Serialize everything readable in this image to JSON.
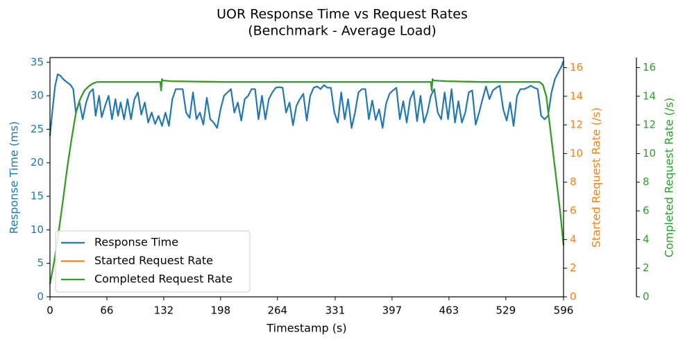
{
  "chart_data": {
    "type": "line",
    "title": "UOR Response Time vs Request Rates",
    "subtitle": "(Benchmark - Average Load)",
    "x_label": "Timestamp (s)",
    "y_label": "Response Time (ms)",
    "y2_label": "Started Request Rate (/s)",
    "y3_label": "Completed Request Rate (/s)",
    "xlim": [
      0,
      596
    ],
    "xticks": [
      0,
      66,
      132,
      198,
      264,
      331,
      397,
      463,
      529,
      596
    ],
    "ylim": [
      0,
      35.7
    ],
    "yticks": [
      0,
      5,
      10,
      15,
      20,
      25,
      30,
      35
    ],
    "y2lim": [
      0,
      16.7
    ],
    "y2ticks": [
      0,
      2,
      4,
      6,
      8,
      10,
      12,
      14,
      16
    ],
    "y3lim": [
      0,
      16.7
    ],
    "y3ticks": [
      0,
      2,
      4,
      6,
      8,
      10,
      12,
      14,
      16
    ],
    "legend": "lower left",
    "series": [
      {
        "name": "Response Time",
        "color": "#1f77b4",
        "axis": "y",
        "x": [
          0,
          3,
          6,
          9,
          12,
          16,
          20,
          24,
          27,
          30,
          34,
          38,
          42,
          46,
          50,
          53,
          57,
          60,
          64,
          68,
          72,
          76,
          79,
          82,
          86,
          90,
          94,
          98,
          102,
          106,
          110,
          114,
          118,
          122,
          126,
          130,
          134,
          138,
          142,
          146,
          150,
          154,
          158,
          162,
          166,
          170,
          174,
          178,
          182,
          186,
          190,
          194,
          198,
          202,
          206,
          210,
          214,
          218,
          222,
          226,
          230,
          234,
          238,
          242,
          246,
          250,
          254,
          258,
          262,
          266,
          270,
          274,
          278,
          282,
          286,
          290,
          294,
          298,
          302,
          306,
          310,
          314,
          318,
          322,
          326,
          330,
          334,
          338,
          342,
          346,
          350,
          354,
          358,
          362,
          366,
          370,
          374,
          378,
          382,
          386,
          390,
          394,
          398,
          402,
          406,
          410,
          414,
          418,
          422,
          426,
          430,
          434,
          438,
          442,
          446,
          450,
          454,
          458,
          462,
          466,
          470,
          474,
          478,
          482,
          486,
          490,
          494,
          498,
          502,
          506,
          510,
          514,
          518,
          522,
          526,
          530,
          534,
          538,
          542,
          546,
          550,
          554,
          558,
          562,
          566,
          570,
          574,
          578,
          582,
          586,
          590,
          594,
          596
        ],
        "values": [
          24,
          28,
          31.5,
          33.2,
          33,
          32.4,
          32,
          31.6,
          31,
          27.5,
          29.2,
          26.5,
          29,
          30.5,
          31,
          27,
          30,
          26.8,
          28.5,
          30,
          26.5,
          29.5,
          27,
          29,
          26.5,
          29.5,
          26.5,
          29.5,
          30.5,
          27.2,
          29,
          26,
          27.5,
          25.8,
          27,
          25.5,
          27.5,
          25.5,
          29.5,
          31,
          31,
          31,
          27.5,
          26.7,
          30.5,
          26.5,
          27.5,
          25.7,
          29.7,
          26.5,
          26,
          25.2,
          28,
          30,
          30.5,
          31,
          27.5,
          29,
          26.3,
          29.5,
          30,
          31,
          31,
          26.5,
          30,
          26.5,
          29.5,
          30.5,
          31.2,
          31.3,
          31.2,
          27.5,
          29,
          25.6,
          28.5,
          29.5,
          30.3,
          26.3,
          30,
          31.2,
          31.4,
          31,
          31.6,
          31.2,
          31.2,
          27.5,
          26,
          30.5,
          26.5,
          29.5,
          25.2,
          27.5,
          30.5,
          31,
          31,
          26.5,
          29.3,
          26.4,
          28,
          25.2,
          28.8,
          30.3,
          30.8,
          31.2,
          26.5,
          29.2,
          26,
          29.5,
          30.7,
          26.2,
          30,
          26,
          27.5,
          30,
          31,
          27.5,
          26.5,
          30.5,
          26.5,
          31,
          26,
          29.2,
          26,
          27.5,
          30.5,
          30.8,
          25.7,
          27.5,
          29.5,
          31.4,
          29.5,
          30.8,
          31.2,
          31.5,
          28,
          26.3,
          29,
          25.5,
          30,
          31,
          31,
          31.2,
          31.5,
          31.2,
          31,
          27,
          26.5,
          27,
          30.5,
          32.5,
          33.5,
          34.5,
          35.2
        ]
      },
      {
        "name": "Started Request Rate",
        "color": "#ff7f0e",
        "axis": "y2",
        "x": [
          0,
          5,
          10,
          15,
          20,
          25,
          30,
          35,
          40,
          45,
          50,
          55,
          60,
          80,
          100,
          128,
          129,
          130,
          131,
          140,
          200,
          300,
          400,
          442,
          443,
          444,
          445,
          460,
          500,
          560,
          568,
          572,
          576,
          580,
          584,
          588,
          592,
          596
        ],
        "values": [
          0.9,
          2.5,
          4.5,
          6.7,
          9,
          11,
          12.8,
          13.8,
          14.4,
          14.7,
          14.9,
          15,
          15,
          15,
          15,
          15,
          14.4,
          15.2,
          15.1,
          15.05,
          15,
          15,
          15,
          15,
          14.4,
          15.2,
          15.1,
          15.05,
          15,
          15,
          15,
          14.8,
          14,
          12,
          10,
          8,
          6,
          3.6
        ]
      },
      {
        "name": "Completed Request Rate",
        "color": "#2ca02c",
        "axis": "y3",
        "x": [
          0,
          5,
          10,
          15,
          20,
          25,
          30,
          35,
          40,
          45,
          50,
          55,
          60,
          80,
          100,
          128,
          129,
          130,
          131,
          140,
          200,
          300,
          400,
          442,
          443,
          444,
          445,
          460,
          500,
          560,
          568,
          572,
          576,
          580,
          584,
          588,
          592,
          596
        ],
        "values": [
          0.9,
          2.5,
          4.5,
          6.7,
          9,
          11,
          12.8,
          13.8,
          14.4,
          14.7,
          14.9,
          15,
          15,
          15,
          15,
          15,
          14.4,
          15.2,
          15.1,
          15.05,
          15,
          15,
          15,
          15,
          14.4,
          15.2,
          15.1,
          15.05,
          15,
          15,
          15,
          14.8,
          14,
          12,
          10,
          8,
          6,
          3.6
        ]
      }
    ]
  }
}
